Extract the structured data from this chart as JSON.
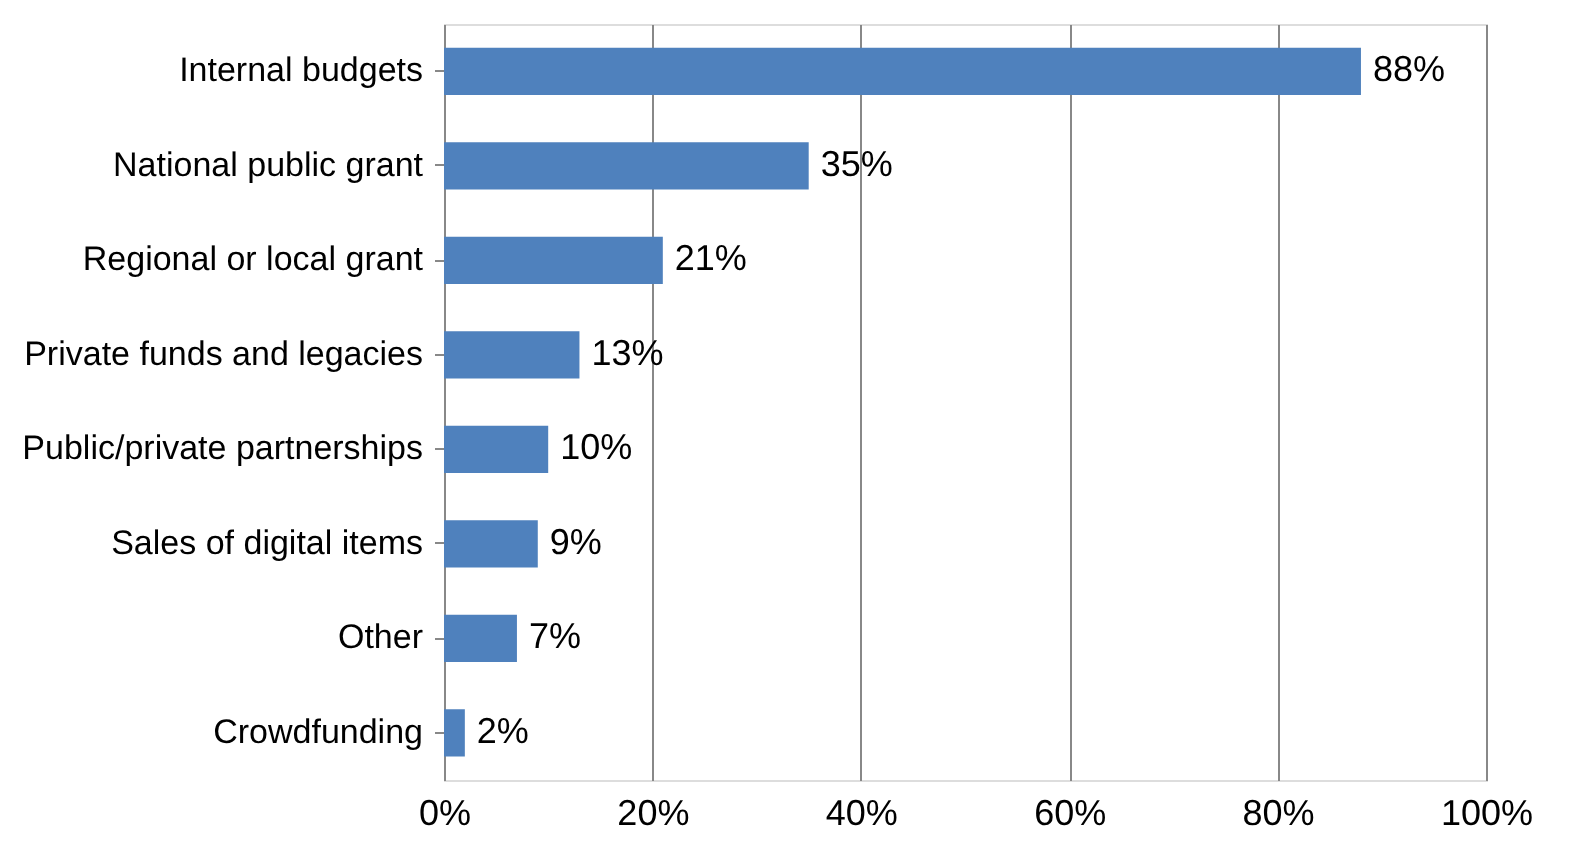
{
  "chart_data": {
    "type": "bar",
    "orientation": "horizontal",
    "categories": [
      "Internal budgets",
      "National public grant",
      "Regional or local grant",
      "Private funds and legacies",
      "Public/private partnerships",
      "Sales of digital items",
      "Other",
      "Crowdfunding"
    ],
    "values": [
      88,
      35,
      21,
      13,
      10,
      9,
      7,
      2
    ],
    "value_labels": [
      "88%",
      "35%",
      "21%",
      "13%",
      "10%",
      "9%",
      "7%",
      "2%"
    ],
    "color": "#4f81bd",
    "xlim": [
      0,
      100
    ],
    "xticks": [
      {
        "value": 0,
        "label": "0%"
      },
      {
        "value": 20,
        "label": "20%"
      },
      {
        "value": 40,
        "label": "40%"
      },
      {
        "value": 60,
        "label": "60%"
      },
      {
        "value": 80,
        "label": "80%"
      },
      {
        "value": 100,
        "label": "100%"
      }
    ],
    "grid": "x"
  }
}
